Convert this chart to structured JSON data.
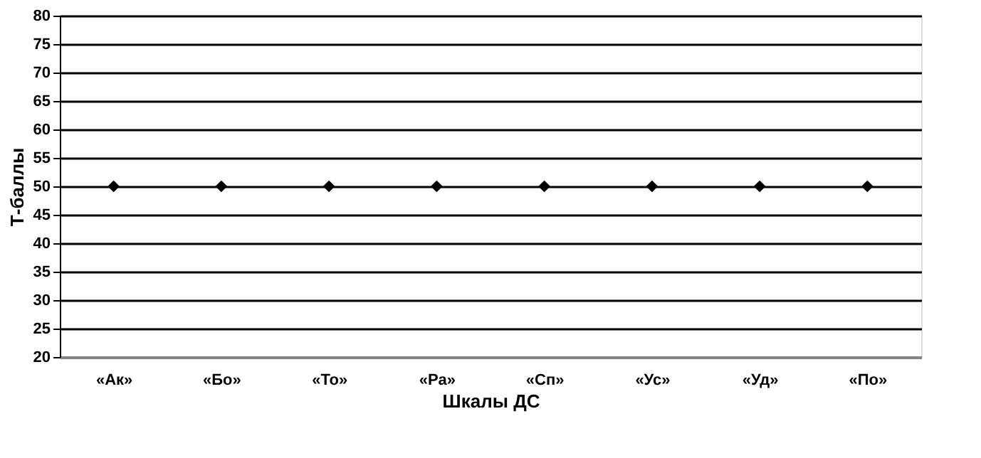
{
  "chart_data": {
    "type": "scatter",
    "xlabel": "Шкалы ДС",
    "ylabel": "Т-баллы",
    "categories": [
      "«Ак»",
      "«Бо»",
      "«То»",
      "«Ра»",
      "«Сп»",
      "«Ус»",
      "«Уд»",
      "«По»"
    ],
    "series": [
      {
        "color": "#000000",
        "values": [
          50,
          50,
          50,
          50,
          50,
          50,
          50,
          50
        ]
      }
    ],
    "ylim": [
      20,
      80
    ],
    "yticks": [
      20,
      25,
      30,
      35,
      40,
      45,
      50,
      55,
      60,
      65,
      70,
      75,
      80
    ],
    "grid": "y",
    "marker": "diamond"
  }
}
